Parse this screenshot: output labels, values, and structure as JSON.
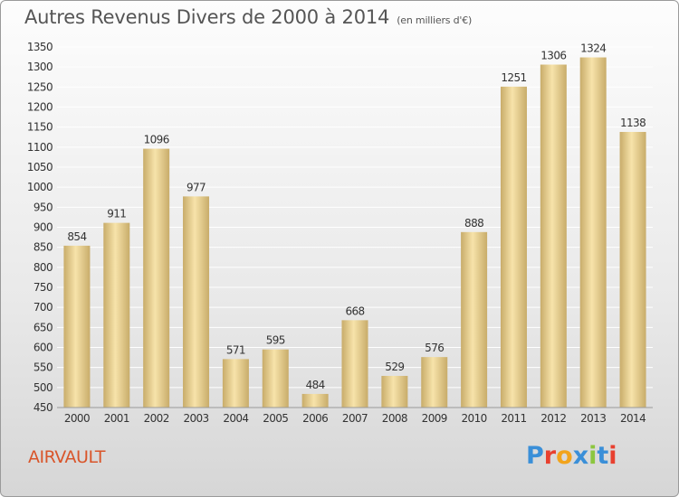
{
  "header": {
    "title": "Autres Revenus Divers de 2000 à 2014",
    "subtitle": "(en milliers d'€)"
  },
  "footer": {
    "place": "AIRVAULT",
    "logo_text": "Proxiti",
    "logo_letters": [
      {
        "ch": "P",
        "color": "#3a8fd8"
      },
      {
        "ch": "r",
        "color": "#e8402f"
      },
      {
        "ch": "o",
        "color": "#f2a41c"
      },
      {
        "ch": "x",
        "color": "#3a8fd8"
      },
      {
        "ch": "i",
        "color": "#8cc63f"
      },
      {
        "ch": "t",
        "color": "#3a8fd8"
      },
      {
        "ch": "i",
        "color": "#e8402f"
      }
    ]
  },
  "colors": {
    "bar_light": "#f7e3aa",
    "bar_dark": "#c8ac6a",
    "grid": "#ffffff",
    "axis_text": "#333333",
    "place": "#d9552a"
  },
  "chart_data": {
    "type": "bar",
    "title": "Autres Revenus Divers de 2000 à 2014",
    "subtitle": "(en milliers d'€)",
    "categories": [
      "2000",
      "2001",
      "2002",
      "2003",
      "2004",
      "2005",
      "2006",
      "2007",
      "2008",
      "2009",
      "2010",
      "2011",
      "2012",
      "2013",
      "2014"
    ],
    "values": [
      854,
      911,
      1096,
      977,
      571,
      595,
      484,
      668,
      529,
      576,
      888,
      1251,
      1306,
      1324,
      1138
    ],
    "ylim": [
      450,
      1350
    ],
    "yticks": [
      450,
      500,
      550,
      600,
      650,
      700,
      750,
      800,
      850,
      900,
      950,
      1000,
      1050,
      1100,
      1150,
      1200,
      1250,
      1300,
      1350
    ],
    "grid": true,
    "legend": "none"
  }
}
